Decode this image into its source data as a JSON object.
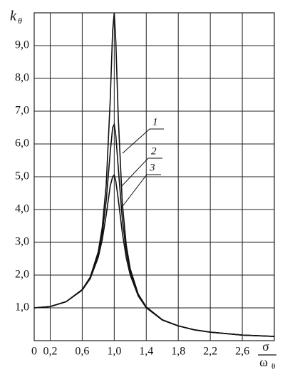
{
  "chart_data": {
    "type": "line",
    "y_label": "k",
    "y_label_subscript": "θ",
    "x_label_numerator": "σ",
    "x_label_denominator": "ω",
    "x_label_subscript": "θ",
    "xlim": [
      0,
      3
    ],
    "ylim": [
      0,
      10
    ],
    "xticks": [
      0,
      {
        "value": 0.2,
        "label": "0,2"
      },
      {
        "value": 0.6,
        "label": "0,6"
      },
      {
        "value": 1.0,
        "label": "1,0"
      },
      {
        "value": 1.4,
        "label": "1,4"
      },
      {
        "value": 1.8,
        "label": "1,8"
      },
      {
        "value": 2.2,
        "label": "2,2"
      },
      {
        "value": 2.6,
        "label": "2,6"
      }
    ],
    "yticks": [
      {
        "value": 1,
        "label": "1,0"
      },
      {
        "value": 2,
        "label": "2,0"
      },
      {
        "value": 3,
        "label": "3,0"
      },
      {
        "value": 4,
        "label": "4,0"
      },
      {
        "value": 5,
        "label": "5,0"
      },
      {
        "value": 6,
        "label": "6,0"
      },
      {
        "value": 7,
        "label": "7,0"
      },
      {
        "value": 8,
        "label": "8,0"
      },
      {
        "value": 9,
        "label": "9,0"
      }
    ],
    "grid": true,
    "x": [
      0,
      0.2,
      0.4,
      0.6,
      0.7,
      0.8,
      0.85,
      0.9,
      0.95,
      0.98,
      1.0,
      1.02,
      1.05,
      1.1,
      1.15,
      1.2,
      1.3,
      1.4,
      1.6,
      1.8,
      2.0,
      2.2,
      2.6,
      3.0
    ],
    "series": [
      {
        "name": "1",
        "color": "#111111",
        "values": [
          1.0,
          1.04,
          1.19,
          1.56,
          1.94,
          2.71,
          3.45,
          4.76,
          7.35,
          9.46,
          10.0,
          9.12,
          6.82,
          4.22,
          2.92,
          2.19,
          1.42,
          1.03,
          0.64,
          0.45,
          0.33,
          0.26,
          0.17,
          0.13
        ]
      },
      {
        "name": "2",
        "color": "#111111",
        "values": [
          1.0,
          1.04,
          1.19,
          1.55,
          1.92,
          2.63,
          3.27,
          4.28,
          5.75,
          6.5,
          6.6,
          6.26,
          5.28,
          3.73,
          2.73,
          2.1,
          1.39,
          1.02,
          0.63,
          0.45,
          0.33,
          0.26,
          0.17,
          0.13
        ]
      },
      {
        "name": "3",
        "color": "#111111",
        "values": [
          1.0,
          1.04,
          1.19,
          1.54,
          1.89,
          2.54,
          3.08,
          3.84,
          4.72,
          5.0,
          5.05,
          4.86,
          4.32,
          3.31,
          2.53,
          2.0,
          1.36,
          1.0,
          0.63,
          0.45,
          0.33,
          0.26,
          0.17,
          0.13
        ]
      }
    ]
  }
}
